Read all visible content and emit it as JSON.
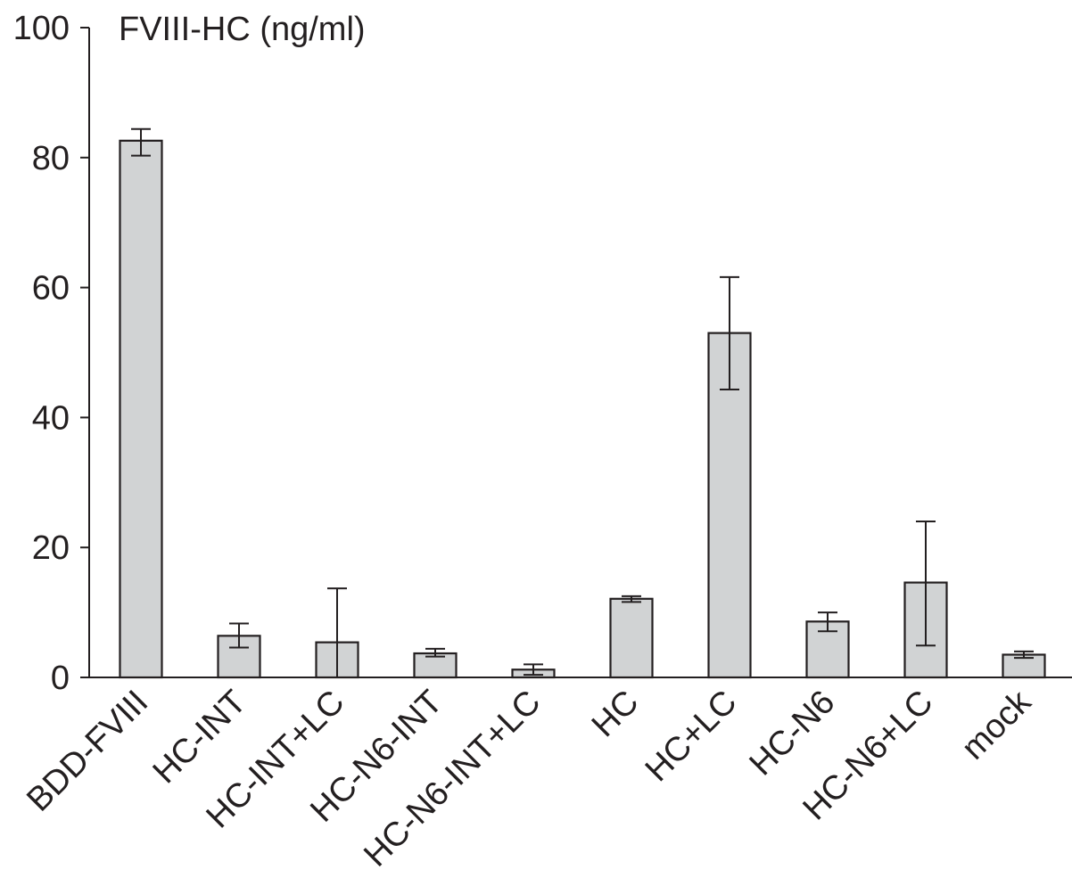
{
  "chart_data": {
    "type": "bar",
    "title": "",
    "xlabel": "",
    "ylabel": "FVIII-HC (ng/ml)",
    "ylim": [
      0,
      100
    ],
    "yticks": [
      "0",
      "20",
      "40",
      "60",
      "80",
      "100"
    ],
    "grid": false,
    "legend": "none",
    "categories": [
      "BDD-FVIII",
      "HC-INT",
      "HC-INT+LC",
      "HC-N6-INT",
      "HC-N6-INT+LC",
      "HC",
      "HC+LC",
      "HC-N6",
      "HC-N6+LC",
      "mock"
    ],
    "series": [
      {
        "values": [
          82.6,
          6.4,
          5.4,
          3.7,
          1.2,
          12.1,
          53.0,
          8.6,
          14.6,
          3.5
        ],
        "error_low": [
          80.3,
          4.6,
          0,
          3.2,
          0.4,
          11.6,
          44.3,
          7.1,
          4.9,
          3.0
        ],
        "error_high": [
          84.4,
          8.3,
          13.7,
          4.4,
          2.0,
          12.5,
          61.6,
          10.0,
          24.0,
          4.0
        ]
      }
    ],
    "colors": {
      "bar_fill": "#d1d3d4",
      "bar_stroke": "#231f20",
      "axis": "#231f20",
      "text": "#231f20"
    }
  }
}
